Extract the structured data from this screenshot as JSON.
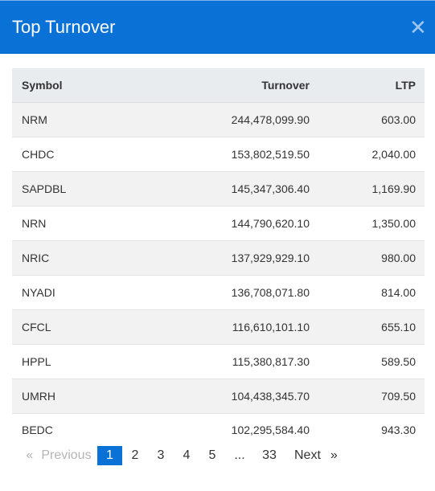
{
  "modal": {
    "title": "Top Turnover",
    "close_icon": "close-icon"
  },
  "table": {
    "columns": [
      "Symbol",
      "Turnover",
      "LTP"
    ],
    "rows": [
      {
        "symbol": "NRM",
        "turnover": "244,478,099.90",
        "ltp": "603.00"
      },
      {
        "symbol": "CHDC",
        "turnover": "153,802,519.50",
        "ltp": "2,040.00"
      },
      {
        "symbol": "SAPDBL",
        "turnover": "145,347,306.40",
        "ltp": "1,169.90"
      },
      {
        "symbol": "NRN",
        "turnover": "144,790,620.10",
        "ltp": "1,350.00"
      },
      {
        "symbol": "NRIC",
        "turnover": "137,929,929.10",
        "ltp": "980.00"
      },
      {
        "symbol": "NYADI",
        "turnover": "136,708,071.80",
        "ltp": "814.00"
      },
      {
        "symbol": "CFCL",
        "turnover": "116,610,101.10",
        "ltp": "655.10"
      },
      {
        "symbol": "HPPL",
        "turnover": "115,380,817.30",
        "ltp": "589.50"
      },
      {
        "symbol": "UMRH",
        "turnover": "104,438,345.70",
        "ltp": "709.50"
      },
      {
        "symbol": "BEDC",
        "turnover": "102,295,584.40",
        "ltp": "943.30"
      }
    ]
  },
  "pagination": {
    "prev_arrow": "«",
    "prev_label": "Previous",
    "pages": [
      "1",
      "2",
      "3",
      "4",
      "5"
    ],
    "active_page": "1",
    "ellipsis": "...",
    "last_page": "33",
    "next_label": "Next",
    "next_arrow": "»"
  },
  "colors": {
    "header": "#0a72d6",
    "active_page": "#0a72d6",
    "stripe": "#f2f2f2"
  }
}
